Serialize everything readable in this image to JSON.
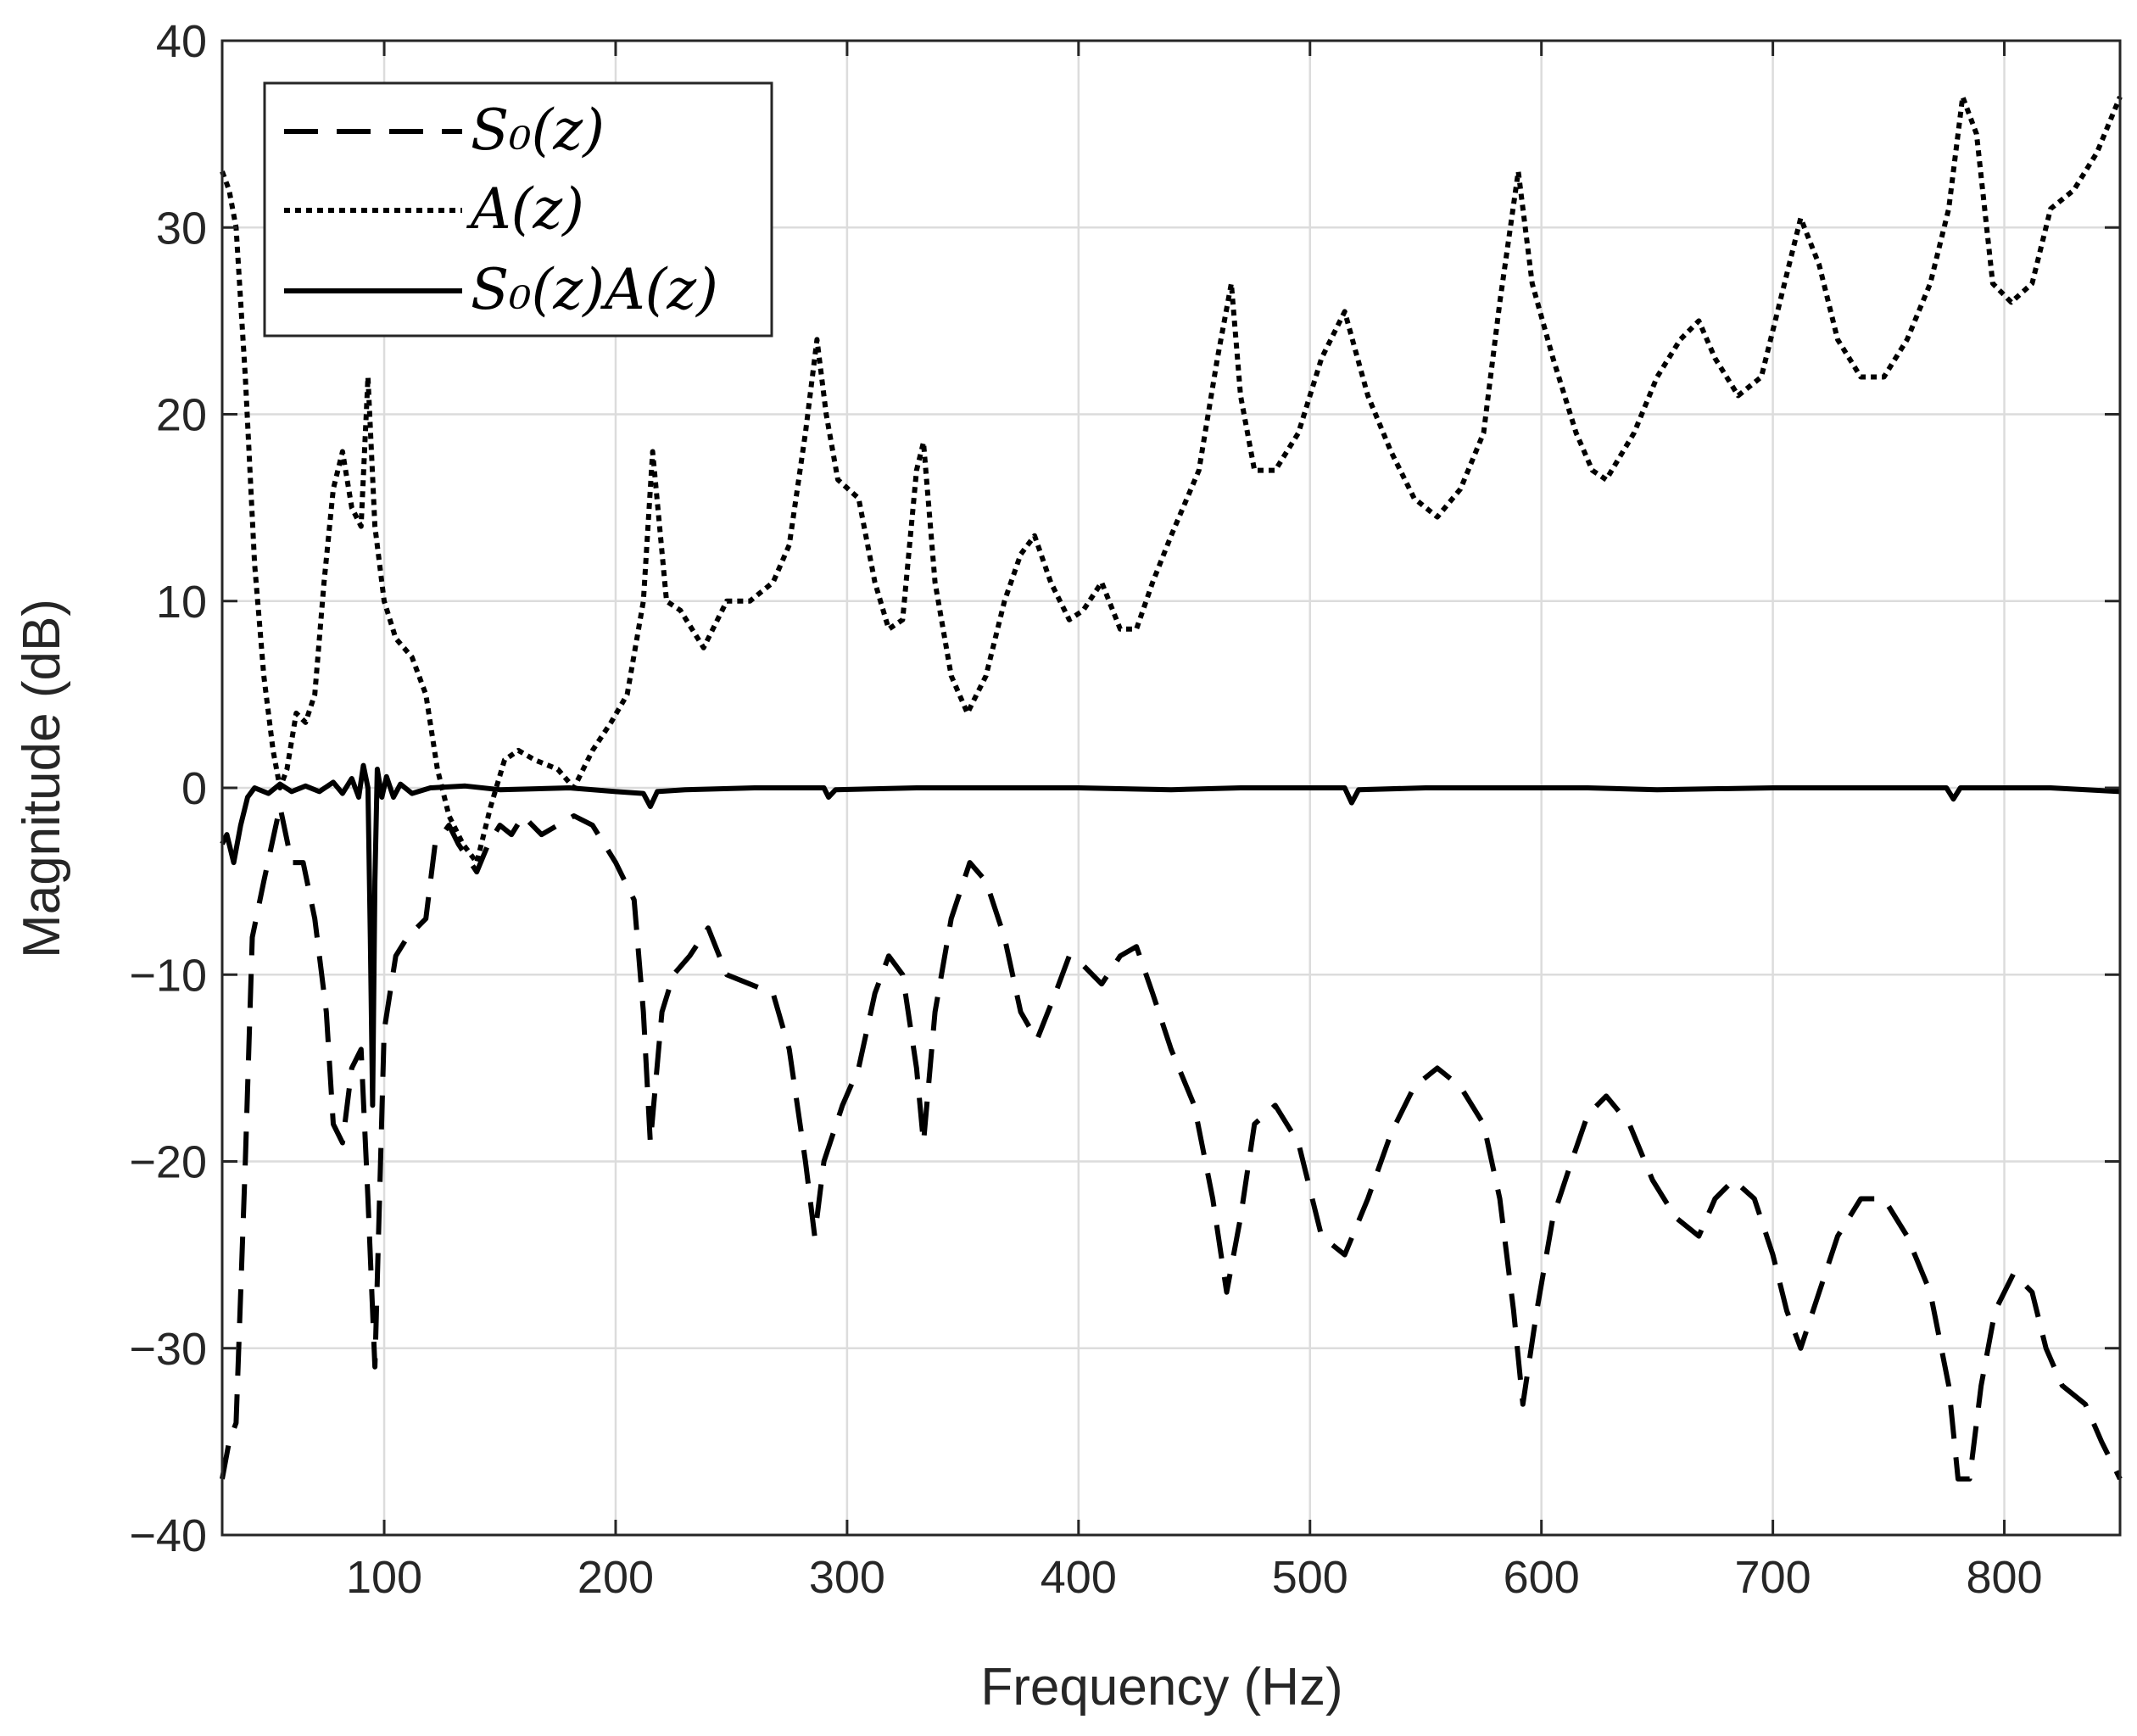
{
  "chart_data": {
    "type": "line",
    "xlabel": "Frequency (Hz)",
    "ylabel": "Magnitude (dB)",
    "xlim": [
      30,
      850
    ],
    "ylim": [
      -40,
      40
    ],
    "grid": true,
    "legend_position": "top-left",
    "x_ticks": [
      100,
      200,
      300,
      400,
      500,
      600,
      700,
      800
    ],
    "x_tick_labels": [
      "100",
      "200",
      "300",
      "400",
      "500",
      "600",
      "700",
      "800"
    ],
    "y_ticks": [
      -40,
      -30,
      -20,
      -10,
      0,
      10,
      20,
      30,
      40
    ],
    "y_tick_labels": [
      "−40",
      "−30",
      "−20",
      "−10",
      "0",
      "10",
      "20",
      "30",
      "40"
    ],
    "series": [
      {
        "name": "S0(z)",
        "legend_label": "S₀(z)",
        "style": "dashed",
        "points": [
          [
            30,
            -37
          ],
          [
            33,
            -35
          ],
          [
            36,
            -34
          ],
          [
            40,
            -20
          ],
          [
            43,
            -8
          ],
          [
            48,
            -5
          ],
          [
            55,
            -1
          ],
          [
            60,
            -4
          ],
          [
            65,
            -4
          ],
          [
            70,
            -7
          ],
          [
            75,
            -12
          ],
          [
            78,
            -18
          ],
          [
            82,
            -19
          ],
          [
            86,
            -15
          ],
          [
            90,
            -14
          ],
          [
            93,
            -22
          ],
          [
            96,
            -31
          ],
          [
            100,
            -13
          ],
          [
            105,
            -9
          ],
          [
            110,
            -8
          ],
          [
            118,
            -7
          ],
          [
            122,
            -3
          ],
          [
            128,
            -2
          ],
          [
            132,
            -3
          ],
          [
            140,
            -4.5
          ],
          [
            145,
            -3
          ],
          [
            150,
            -2
          ],
          [
            155,
            -2.5
          ],
          [
            160,
            -1.5
          ],
          [
            168,
            -2.5
          ],
          [
            175,
            -2
          ],
          [
            182,
            -1.5
          ],
          [
            190,
            -2
          ],
          [
            200,
            -4
          ],
          [
            208,
            -6
          ],
          [
            212,
            -12
          ],
          [
            215,
            -19
          ],
          [
            220,
            -12
          ],
          [
            225,
            -10
          ],
          [
            232,
            -9
          ],
          [
            240,
            -7.5
          ],
          [
            248,
            -10
          ],
          [
            258,
            -10.5
          ],
          [
            268,
            -11
          ],
          [
            275,
            -14
          ],
          [
            282,
            -20
          ],
          [
            286,
            -24
          ],
          [
            290,
            -20
          ],
          [
            298,
            -17
          ],
          [
            305,
            -15
          ],
          [
            312,
            -11
          ],
          [
            318,
            -9
          ],
          [
            324,
            -10
          ],
          [
            330,
            -15
          ],
          [
            333,
            -19
          ],
          [
            338,
            -12
          ],
          [
            345,
            -7
          ],
          [
            353,
            -4
          ],
          [
            360,
            -5
          ],
          [
            368,
            -8
          ],
          [
            375,
            -12
          ],
          [
            382,
            -13.5
          ],
          [
            390,
            -11
          ],
          [
            396,
            -9
          ],
          [
            402,
            -9.5
          ],
          [
            410,
            -10.5
          ],
          [
            418,
            -9
          ],
          [
            425,
            -8.5
          ],
          [
            432,
            -11
          ],
          [
            440,
            -14
          ],
          [
            450,
            -17
          ],
          [
            458,
            -22
          ],
          [
            464,
            -27
          ],
          [
            470,
            -23
          ],
          [
            476,
            -18
          ],
          [
            485,
            -17
          ],
          [
            495,
            -19
          ],
          [
            505,
            -24
          ],
          [
            515,
            -25
          ],
          [
            525,
            -22
          ],
          [
            535,
            -18.5
          ],
          [
            545,
            -16
          ],
          [
            555,
            -15
          ],
          [
            565,
            -16
          ],
          [
            575,
            -18
          ],
          [
            582,
            -22
          ],
          [
            588,
            -28
          ],
          [
            592,
            -33
          ],
          [
            598,
            -28
          ],
          [
            605,
            -23
          ],
          [
            613,
            -20
          ],
          [
            620,
            -17.5
          ],
          [
            628,
            -16.5
          ],
          [
            638,
            -18
          ],
          [
            648,
            -21
          ],
          [
            658,
            -23
          ],
          [
            668,
            -24
          ],
          [
            675,
            -22
          ],
          [
            683,
            -21
          ],
          [
            692,
            -22
          ],
          [
            700,
            -25
          ],
          [
            706,
            -28
          ],
          [
            712,
            -30
          ],
          [
            720,
            -27
          ],
          [
            728,
            -24
          ],
          [
            738,
            -22
          ],
          [
            748,
            -22
          ],
          [
            758,
            -24
          ],
          [
            768,
            -27
          ],
          [
            776,
            -32
          ],
          [
            780,
            -37
          ],
          [
            785,
            -37
          ],
          [
            790,
            -32
          ],
          [
            796,
            -28
          ],
          [
            804,
            -26
          ],
          [
            812,
            -27
          ],
          [
            818,
            -30
          ],
          [
            825,
            -32
          ],
          [
            835,
            -33
          ],
          [
            842,
            -35
          ],
          [
            850,
            -37
          ]
        ]
      },
      {
        "name": "A(z)",
        "legend_label": "A(z)",
        "style": "dotted",
        "points": [
          [
            30,
            33
          ],
          [
            33,
            32
          ],
          [
            36,
            30
          ],
          [
            40,
            22
          ],
          [
            44,
            12
          ],
          [
            48,
            6
          ],
          [
            52,
            2
          ],
          [
            55,
            0
          ],
          [
            58,
            1
          ],
          [
            62,
            4
          ],
          [
            66,
            3.5
          ],
          [
            70,
            5
          ],
          [
            74,
            11
          ],
          [
            78,
            16
          ],
          [
            82,
            18
          ],
          [
            86,
            15
          ],
          [
            90,
            14
          ],
          [
            93,
            22
          ],
          [
            96,
            14
          ],
          [
            100,
            10
          ],
          [
            105,
            8
          ],
          [
            112,
            7
          ],
          [
            118,
            5
          ],
          [
            123,
            1
          ],
          [
            128,
            -1.5
          ],
          [
            134,
            -3
          ],
          [
            140,
            -4
          ],
          [
            146,
            -1
          ],
          [
            152,
            1.5
          ],
          [
            158,
            2
          ],
          [
            165,
            1.5
          ],
          [
            175,
            1
          ],
          [
            182,
            0
          ],
          [
            190,
            2
          ],
          [
            198,
            3.5
          ],
          [
            205,
            5
          ],
          [
            212,
            10
          ],
          [
            216,
            18
          ],
          [
            222,
            10
          ],
          [
            228,
            9.5
          ],
          [
            238,
            7.5
          ],
          [
            248,
            10
          ],
          [
            258,
            10
          ],
          [
            268,
            11
          ],
          [
            275,
            13
          ],
          [
            282,
            19
          ],
          [
            287,
            24
          ],
          [
            291,
            20
          ],
          [
            296,
            16.5
          ],
          [
            305,
            15.5
          ],
          [
            312,
            11
          ],
          [
            318,
            8.5
          ],
          [
            324,
            9
          ],
          [
            330,
            17
          ],
          [
            333,
            18.5
          ],
          [
            338,
            11
          ],
          [
            345,
            6
          ],
          [
            352,
            4
          ],
          [
            360,
            6
          ],
          [
            368,
            10
          ],
          [
            375,
            12.5
          ],
          [
            381,
            13.5
          ],
          [
            388,
            11
          ],
          [
            396,
            9
          ],
          [
            402,
            9.5
          ],
          [
            410,
            11
          ],
          [
            418,
            8.5
          ],
          [
            425,
            8.5
          ],
          [
            432,
            11
          ],
          [
            440,
            13.5
          ],
          [
            452,
            17
          ],
          [
            460,
            23
          ],
          [
            466,
            27
          ],
          [
            470,
            21
          ],
          [
            476,
            17
          ],
          [
            485,
            17
          ],
          [
            495,
            19
          ],
          [
            505,
            23
          ],
          [
            515,
            25.5
          ],
          [
            525,
            21
          ],
          [
            535,
            18
          ],
          [
            545,
            15.5
          ],
          [
            555,
            14.5
          ],
          [
            565,
            16
          ],
          [
            575,
            19
          ],
          [
            582,
            26
          ],
          [
            590,
            33
          ],
          [
            596,
            27
          ],
          [
            605,
            23
          ],
          [
            615,
            19
          ],
          [
            622,
            17
          ],
          [
            628,
            16.5
          ],
          [
            640,
            19
          ],
          [
            650,
            22
          ],
          [
            660,
            24
          ],
          [
            668,
            25
          ],
          [
            675,
            23
          ],
          [
            685,
            21
          ],
          [
            695,
            22
          ],
          [
            705,
            27
          ],
          [
            712,
            30.5
          ],
          [
            720,
            28
          ],
          [
            728,
            24
          ],
          [
            738,
            22
          ],
          [
            748,
            22
          ],
          [
            758,
            24
          ],
          [
            768,
            27
          ],
          [
            776,
            31
          ],
          [
            782,
            37
          ],
          [
            788,
            35
          ],
          [
            795,
            27
          ],
          [
            803,
            26
          ],
          [
            812,
            27
          ],
          [
            820,
            31
          ],
          [
            830,
            32
          ],
          [
            840,
            34
          ],
          [
            850,
            37
          ]
        ]
      },
      {
        "name": "S0(z)A(z)",
        "legend_label": "S₀(z)A(z)",
        "style": "solid",
        "points": [
          [
            30,
            -3
          ],
          [
            32,
            -2.5
          ],
          [
            35,
            -4
          ],
          [
            38,
            -2
          ],
          [
            41,
            -0.5
          ],
          [
            44,
            0
          ],
          [
            50,
            -0.3
          ],
          [
            55,
            0.2
          ],
          [
            60,
            -0.2
          ],
          [
            66,
            0.1
          ],
          [
            72,
            -0.2
          ],
          [
            78,
            0.3
          ],
          [
            82,
            -0.3
          ],
          [
            86,
            0.5
          ],
          [
            89,
            -0.5
          ],
          [
            91,
            1.2
          ],
          [
            93,
            0
          ],
          [
            94,
            -8
          ],
          [
            95,
            -17
          ],
          [
            96,
            -5
          ],
          [
            97,
            1
          ],
          [
            99,
            -0.5
          ],
          [
            101,
            0.6
          ],
          [
            104,
            -0.5
          ],
          [
            107,
            0.2
          ],
          [
            112,
            -0.3
          ],
          [
            120,
            0
          ],
          [
            135,
            0.1
          ],
          [
            150,
            -0.1
          ],
          [
            180,
            0
          ],
          [
            200,
            -0.2
          ],
          [
            212,
            -0.3
          ],
          [
            215,
            -1
          ],
          [
            218,
            -0.2
          ],
          [
            230,
            -0.1
          ],
          [
            260,
            0
          ],
          [
            290,
            0
          ],
          [
            292,
            -0.5
          ],
          [
            295,
            -0.1
          ],
          [
            330,
            0
          ],
          [
            370,
            0
          ],
          [
            400,
            0
          ],
          [
            440,
            -0.1
          ],
          [
            470,
            0
          ],
          [
            500,
            0
          ],
          [
            515,
            0
          ],
          [
            518,
            -0.8
          ],
          [
            521,
            -0.1
          ],
          [
            550,
            0
          ],
          [
            590,
            0
          ],
          [
            620,
            0
          ],
          [
            650,
            -0.1
          ],
          [
            700,
            0
          ],
          [
            750,
            0
          ],
          [
            775,
            0
          ],
          [
            778,
            -0.6
          ],
          [
            781,
            0
          ],
          [
            800,
            0
          ],
          [
            820,
            0
          ],
          [
            850,
            -0.2
          ]
        ]
      }
    ]
  }
}
